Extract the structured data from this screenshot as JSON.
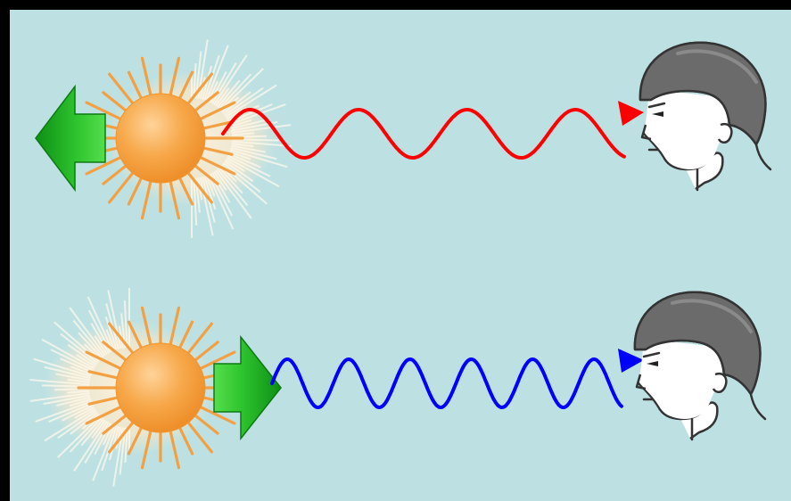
{
  "diagram": {
    "background_color": "#bde1e3",
    "border_color": "#000000",
    "sun_color": "#f7a84a",
    "ray_color": "#f3a042",
    "arrow_color": "#1fb21f",
    "head_color": "#6b6b6b",
    "panels": [
      {
        "id": "receding",
        "wave_color": "#ff0000",
        "motion_arrow_direction": "left",
        "wave_cycles": 4,
        "icons": [
          "sun-icon",
          "left-arrow-icon",
          "wave-icon",
          "observer-head-icon"
        ]
      },
      {
        "id": "approaching",
        "wave_color": "#0000ff",
        "motion_arrow_direction": "right",
        "wave_cycles": 6,
        "icons": [
          "sun-icon",
          "right-arrow-icon",
          "wave-icon",
          "observer-head-icon"
        ]
      }
    ]
  }
}
